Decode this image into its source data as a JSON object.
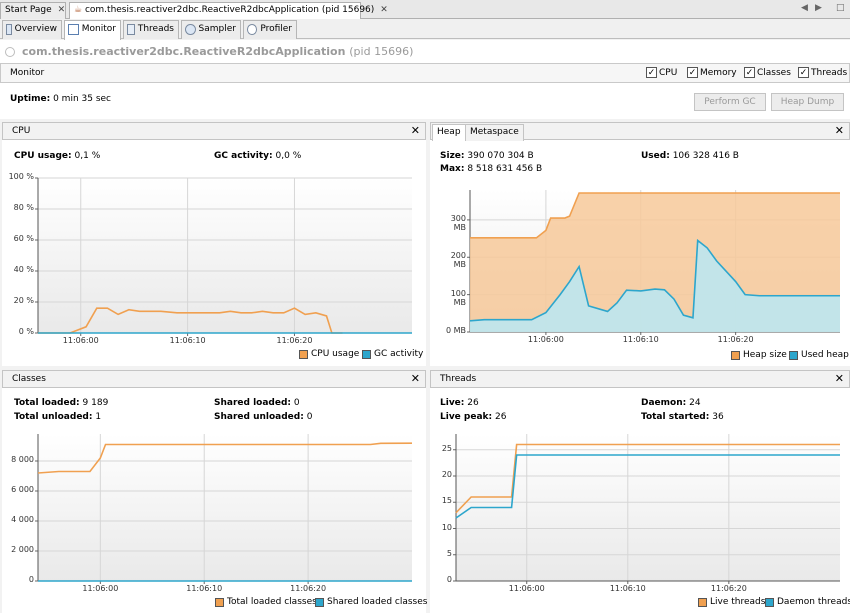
{
  "doc_tabs": [
    {
      "label": "Start Page"
    },
    {
      "label": "com.thesis.reactiver2dbc.ReactiveR2dbcApplication (pid 15696)"
    }
  ],
  "view_tabs": [
    {
      "label": "Overview",
      "icon": "overview-icon"
    },
    {
      "label": "Monitor",
      "icon": "monitor-icon"
    },
    {
      "label": "Threads",
      "icon": "threads-icon"
    },
    {
      "label": "Sampler",
      "icon": "sampler-icon"
    },
    {
      "label": "Profiler",
      "icon": "profiler-icon"
    }
  ],
  "app": {
    "name": "com.thesis.reactiver2dbc.ReactiveR2dbcApplication",
    "pid": "(pid 15696)"
  },
  "monitor": {
    "label": "Monitor",
    "checkboxes": [
      {
        "label": "CPU",
        "checked": true
      },
      {
        "label": "Memory",
        "checked": true
      },
      {
        "label": "Classes",
        "checked": true
      },
      {
        "label": "Threads",
        "checked": true
      }
    ],
    "uptime_label": "Uptime:",
    "uptime_value": "0 min 35 sec",
    "perform_gc": "Perform GC",
    "heap_dump": "Heap Dump"
  },
  "cpu": {
    "title": "CPU",
    "usage_label": "CPU usage:",
    "usage_value": "0,1 %",
    "gc_label": "GC activity:",
    "gc_value": "0,0 %"
  },
  "heap": {
    "tab_heap": "Heap",
    "tab_metaspace": "Metaspace",
    "size_label": "Size:",
    "size_value": "390 070 304 B",
    "used_label": "Used:",
    "used_value": "106 328 416 B",
    "max_label": "Max:",
    "max_value": "8 518 631 456 B"
  },
  "classes": {
    "title": "Classes",
    "total_loaded_label": "Total loaded:",
    "total_loaded_value": "9 189",
    "total_unloaded_label": "Total unloaded:",
    "total_unloaded_value": "1",
    "shared_loaded_label": "Shared loaded:",
    "shared_loaded_value": "0",
    "shared_unloaded_label": "Shared unloaded:",
    "shared_unloaded_value": "0"
  },
  "threads": {
    "title": "Threads",
    "live_label": "Live:",
    "live_value": "26",
    "live_peak_label": "Live peak:",
    "live_peak_value": "26",
    "daemon_label": "Daemon:",
    "daemon_value": "24",
    "total_started_label": "Total started:",
    "total_started_value": "36"
  },
  "colors": {
    "orange": "#f0a050",
    "blue": "#2da6cc",
    "orange_fill": "#f7c99a",
    "blue_fill": "#b9e7f4"
  },
  "chart_data": [
    {
      "id": "cpu",
      "type": "line",
      "xlabel": "",
      "ylabel": "",
      "x_ticks": [
        "11:06:00",
        "11:06:10",
        "11:06:20"
      ],
      "y_ticks": [
        "100 %",
        "80 %",
        "60 %",
        "40 %",
        "20 %",
        "0 %"
      ],
      "ylim": [
        0,
        100
      ],
      "xlim": [
        -4,
        31
      ],
      "series": [
        {
          "name": "CPU usage",
          "color": "#f0a050",
          "x": [
            -4,
            -1,
            0.5,
            1.5,
            2.5,
            3.5,
            4.5,
            5.5,
            6.5,
            7.5,
            9,
            10.5,
            12,
            13,
            14,
            15,
            16,
            17,
            18,
            19,
            20,
            21,
            22,
            23,
            23.5,
            24.5
          ],
          "y": [
            0,
            0,
            4,
            16,
            16,
            12,
            15,
            14,
            14,
            14,
            13,
            13,
            13,
            13,
            14,
            13,
            13,
            14,
            13,
            13,
            16,
            12,
            13,
            11,
            0,
            0
          ]
        },
        {
          "name": "GC activity",
          "color": "#2da6cc",
          "x": [
            -4,
            31
          ],
          "y": [
            0,
            0
          ]
        }
      ]
    },
    {
      "id": "heap",
      "type": "area",
      "x_ticks": [
        "11:06:00",
        "11:06:10",
        "11:06:20"
      ],
      "y_ticks": [
        "300 MB",
        "200 MB",
        "100 MB",
        "0 MB"
      ],
      "ylim": [
        0,
        380
      ],
      "xlim": [
        -8,
        31
      ],
      "series": [
        {
          "name": "Heap size",
          "color": "#f0a050",
          "x": [
            -8,
            -1,
            0,
            0.5,
            2,
            2.5,
            3.5,
            4.5,
            31
          ],
          "y": [
            252,
            252,
            272,
            305,
            305,
            310,
            372,
            372,
            372
          ]
        },
        {
          "name": "Used heap",
          "color": "#2da6cc",
          "x": [
            -8,
            -6.5,
            -3,
            -1.5,
            0,
            1.5,
            2.5,
            3.5,
            4.5,
            6.5,
            7.5,
            8.5,
            10,
            11.5,
            12.5,
            13.5,
            14.5,
            15.5,
            16,
            17,
            18,
            20,
            21,
            22.5,
            31
          ],
          "y": [
            30,
            33,
            33,
            33,
            52,
            100,
            135,
            175,
            70,
            55,
            78,
            112,
            110,
            115,
            113,
            88,
            45,
            38,
            245,
            225,
            190,
            135,
            100,
            97,
            97
          ]
        }
      ]
    },
    {
      "id": "classes",
      "type": "line",
      "x_ticks": [
        "11:06:00",
        "11:06:10",
        "11:06:20"
      ],
      "y_ticks": [
        "8 000",
        "6 000",
        "4 000",
        "2 000",
        "0"
      ],
      "ylim": [
        0,
        9800
      ],
      "xlim": [
        -6,
        30
      ],
      "series": [
        {
          "name": "Total loaded classes",
          "color": "#f0a050",
          "x": [
            -6,
            -4,
            -1,
            0,
            0.5,
            26,
            27,
            30
          ],
          "y": [
            7200,
            7300,
            7300,
            8200,
            9100,
            9100,
            9180,
            9189
          ]
        },
        {
          "name": "Shared loaded classes",
          "color": "#2da6cc",
          "x": [
            -6,
            30
          ],
          "y": [
            0,
            0
          ]
        }
      ]
    },
    {
      "id": "threads",
      "type": "line",
      "x_ticks": [
        "11:06:00",
        "11:06:10",
        "11:06:20"
      ],
      "y_ticks": [
        "25",
        "20",
        "15",
        "10",
        "5",
        "0"
      ],
      "ylim": [
        0,
        28
      ],
      "xlim": [
        -7,
        31
      ],
      "series": [
        {
          "name": "Live threads",
          "color": "#f0a050",
          "x": [
            -7,
            -5.5,
            -3,
            -1.5,
            -1,
            31
          ],
          "y": [
            13,
            16,
            16,
            16,
            26,
            26
          ]
        },
        {
          "name": "Daemon threads",
          "color": "#2da6cc",
          "x": [
            -7,
            -5.5,
            -3,
            -1.5,
            -1,
            31
          ],
          "y": [
            12,
            14,
            14,
            14,
            24,
            24
          ]
        }
      ]
    }
  ]
}
